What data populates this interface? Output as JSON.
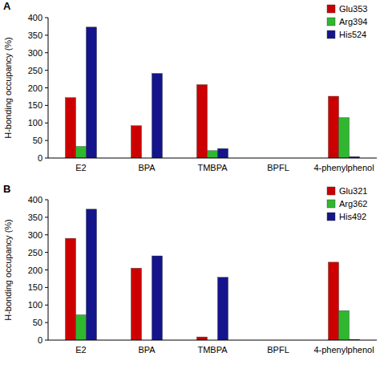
{
  "chart_data": [
    {
      "type": "bar",
      "title": "A",
      "y_label": "H-bonding occupancy (%)",
      "categories": [
        "E2",
        "BPA",
        "TMBPA",
        "BPFL",
        "4-phenylphenol"
      ],
      "series": [
        {
          "name": "Glu353",
          "color": "#cc0000",
          "values": [
            172,
            92,
            209,
            0,
            176
          ]
        },
        {
          "name": "Arg394",
          "color": "#2fb82f",
          "values": [
            33,
            0,
            21,
            0,
            115
          ]
        },
        {
          "name": "His524",
          "color": "#14148c",
          "values": [
            373,
            241,
            27,
            0,
            4
          ]
        }
      ],
      "ylim": [
        0,
        400
      ],
      "yticks": [
        0,
        50,
        100,
        150,
        200,
        250,
        300,
        350,
        400
      ],
      "grid": false,
      "legend": "top-right"
    },
    {
      "type": "bar",
      "title": "B",
      "y_label": "H-bonding occupancy (%)",
      "categories": [
        "E2",
        "BPA",
        "TMBPA",
        "BPFL",
        "4-phenylphenol"
      ],
      "series": [
        {
          "name": "Glu321",
          "color": "#cc0000",
          "values": [
            290,
            205,
            9,
            0,
            222
          ]
        },
        {
          "name": "Arg362",
          "color": "#2fb82f",
          "values": [
            72,
            0,
            0,
            0,
            84
          ]
        },
        {
          "name": "His492",
          "color": "#14148c",
          "values": [
            373,
            240,
            179,
            0,
            2
          ]
        }
      ],
      "ylim": [
        0,
        400
      ],
      "yticks": [
        0,
        50,
        100,
        150,
        200,
        250,
        300,
        350,
        400
      ],
      "grid": false,
      "legend": "top-right"
    }
  ]
}
